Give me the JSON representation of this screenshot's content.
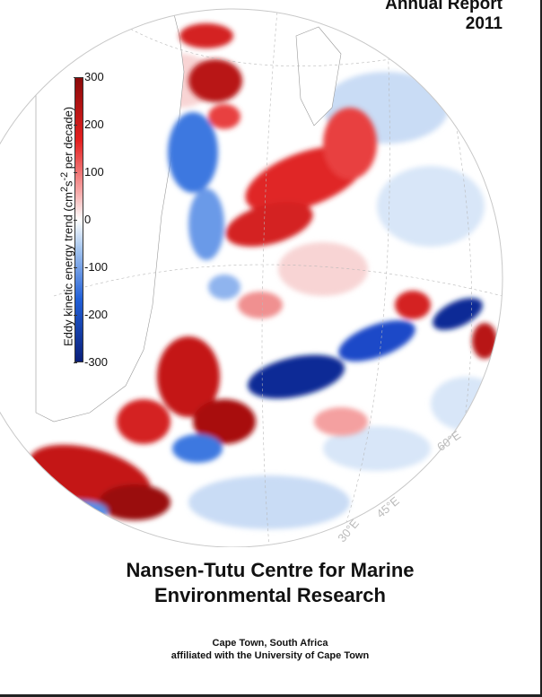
{
  "header": {
    "report_line1": "Annual Report",
    "report_line2": "2011"
  },
  "figure": {
    "colorbar": {
      "label_prefix": "Eddy kinetic energy trend (cm",
      "label_sup1": "2",
      "label_mid": "s",
      "label_sup2": "-2",
      "label_suffix": " per decade)",
      "ticks": [
        "300",
        "200",
        "100",
        "0",
        "-100",
        "-200",
        "-300"
      ],
      "colors": {
        "max": "#8b0a0a",
        "high": "#e32020",
        "mid_high": "#f7a8a8",
        "zero": "#ffffff",
        "mid_low": "#a8c8f0",
        "low": "#2260d8",
        "min": "#0a1f7a"
      }
    },
    "longitude_labels": [
      "60°E",
      "45°E",
      "30°E"
    ]
  },
  "organization": {
    "name_line1": "Nansen-Tutu Centre for Marine",
    "name_line2": "Environmental Research",
    "location": "Cape Town, South Africa",
    "affiliation": "affiliated with the University of Cape Town"
  }
}
